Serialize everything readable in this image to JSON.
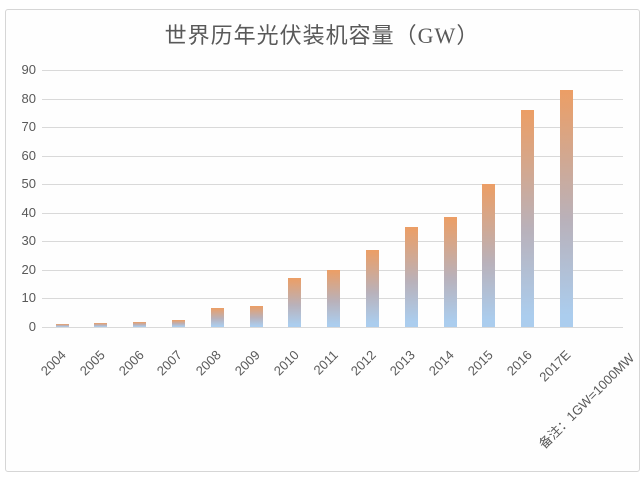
{
  "chart_data": {
    "type": "bar",
    "title": "世界历年光伏装机容量（GW）",
    "note": "备注：1GW=1000MW",
    "categories": [
      "2004",
      "2005",
      "2006",
      "2007",
      "2008",
      "2009",
      "2010",
      "2011",
      "2012",
      "2013",
      "2014",
      "2015",
      "2016",
      "2017E"
    ],
    "values": [
      1,
      1.4,
      1.6,
      2.4,
      6.5,
      7.3,
      17,
      20,
      27,
      35,
      38.5,
      50,
      76,
      83
    ],
    "xlabel": "",
    "ylabel": "",
    "ylim": [
      0,
      90
    ],
    "yticks": [
      0,
      10,
      20,
      30,
      40,
      50,
      60,
      70,
      80,
      90
    ],
    "grid": true,
    "legend": "none",
    "colors": {
      "bar_gradient_top": "#ec9e65",
      "bar_gradient_mid": "#b9b1ba",
      "bar_gradient_bottom": "#abcdee",
      "gridline": "#d9d9d9",
      "text": "#595959",
      "card_border": "#d6d6d6"
    }
  }
}
